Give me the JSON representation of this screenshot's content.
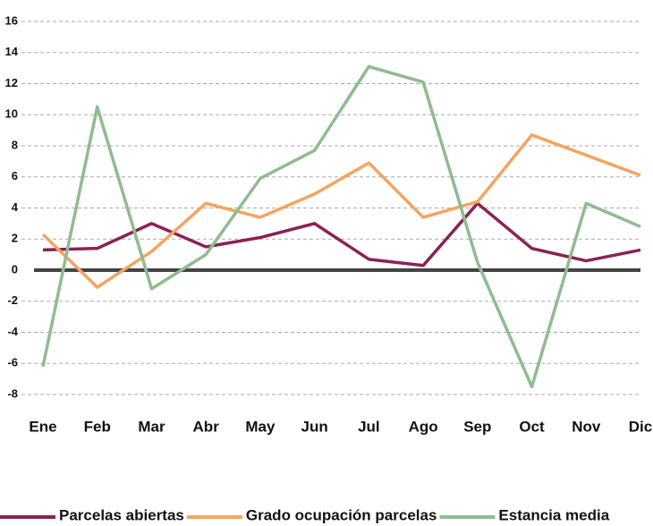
{
  "chart_data": {
    "type": "line",
    "categories": [
      "Ene",
      "Feb",
      "Mar",
      "Abr",
      "May",
      "Jun",
      "Jul",
      "Ago",
      "Sep",
      "Oct",
      "Nov",
      "Dic"
    ],
    "series": [
      {
        "name": "Parcelas abiertas",
        "color": "#8b2252",
        "values": [
          1.3,
          1.4,
          3.0,
          1.5,
          2.1,
          3.0,
          0.7,
          0.3,
          4.3,
          1.4,
          0.6,
          1.3
        ]
      },
      {
        "name": "Grado ocupación parcelas",
        "color": "#f4a460",
        "values": [
          2.3,
          -1.1,
          1.2,
          4.3,
          3.4,
          4.9,
          6.9,
          3.4,
          4.4,
          8.7,
          7.4,
          6.1
        ]
      },
      {
        "name": "Estancia media",
        "color": "#8fbc8f",
        "values": [
          -6.2,
          10.5,
          -1.2,
          1.0,
          5.9,
          7.7,
          13.1,
          12.1,
          0.5,
          -7.5,
          4.3,
          2.8
        ]
      }
    ],
    "ylim": [
      -8,
      16
    ],
    "yticks": [
      -8,
      -6,
      -4,
      -2,
      0,
      2,
      4,
      6,
      8,
      10,
      12,
      14,
      16
    ],
    "grid": true
  }
}
